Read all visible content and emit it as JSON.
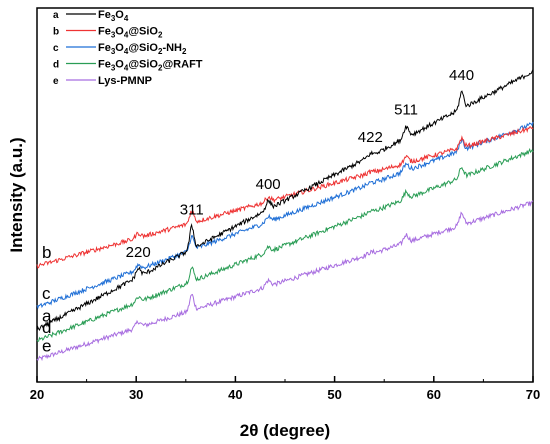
{
  "chart_data": {
    "type": "line",
    "xlabel": "2θ (degree)",
    "ylabel": "Intensity (a.u.)",
    "xlim": [
      20,
      70
    ],
    "xticks": [
      "20",
      "30",
      "40",
      "50",
      "60",
      "70"
    ],
    "grid": false,
    "legend_position": "top-left",
    "peaks": [
      {
        "label": "220",
        "x": 30.2
      },
      {
        "label": "311",
        "x": 35.6
      },
      {
        "label": "400",
        "x": 43.3
      },
      {
        "label": "422",
        "x": 53.6
      },
      {
        "label": "511",
        "x": 57.2
      },
      {
        "label": "440",
        "x": 62.8
      }
    ],
    "series": [
      {
        "key": "a",
        "name": "Fe3O4",
        "parts": [
          [
            "Fe",
            ""
          ],
          [
            "3",
            "sub"
          ],
          [
            "O",
            ""
          ],
          [
            "4",
            "sub"
          ]
        ],
        "color": "#000000",
        "start": 0.14,
        "end": 0.83,
        "peak_scale": 1.0
      },
      {
        "key": "b",
        "name": "Fe3O4@SiO2",
        "parts": [
          [
            "Fe",
            ""
          ],
          [
            "3",
            "sub"
          ],
          [
            "O",
            ""
          ],
          [
            "4",
            "sub"
          ],
          [
            "@SiO",
            ""
          ],
          [
            "2",
            "sub"
          ]
        ],
        "color": "#ee3333",
        "start": 0.31,
        "end": 0.68,
        "peak_scale": 0.55
      },
      {
        "key": "c",
        "name": "Fe3O4@SiO2-NH2",
        "parts": [
          [
            "Fe",
            ""
          ],
          [
            "3",
            "sub"
          ],
          [
            "O",
            ""
          ],
          [
            "4",
            "sub"
          ],
          [
            "@SiO",
            ""
          ],
          [
            "2",
            "sub"
          ],
          [
            "-NH",
            ""
          ],
          [
            "2",
            "sub"
          ]
        ],
        "color": "#1f6fd6",
        "start": 0.2,
        "end": 0.69,
        "peak_scale": 0.6
      },
      {
        "key": "d",
        "name": "Fe3O4@SiO2@RAFT",
        "parts": [
          [
            "Fe",
            ""
          ],
          [
            "3",
            "sub"
          ],
          [
            "O",
            ""
          ],
          [
            "4",
            "sub"
          ],
          [
            "@SiO",
            ""
          ],
          [
            "2",
            "sub"
          ],
          [
            "@RAFT",
            ""
          ]
        ],
        "color": "#2a9d55",
        "start": 0.11,
        "end": 0.62,
        "peak_scale": 0.6
      },
      {
        "key": "e",
        "name": "Lys-PMNP",
        "parts": [
          [
            "Lys-PMNP",
            ""
          ]
        ],
        "color": "#a86ee0",
        "start": 0.06,
        "end": 0.48,
        "peak_scale": 0.7
      }
    ]
  }
}
